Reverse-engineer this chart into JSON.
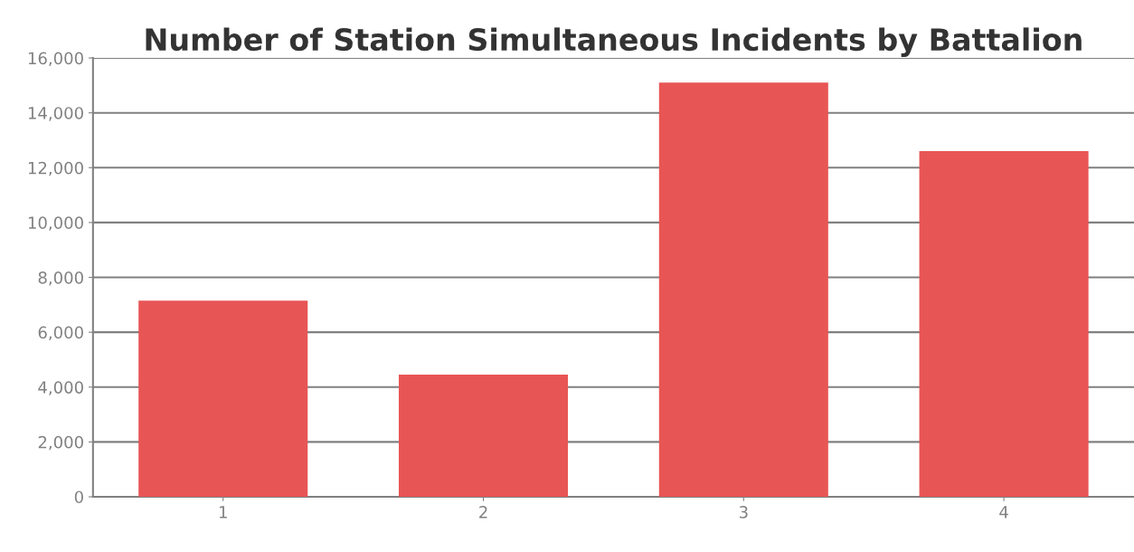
{
  "chart_data": {
    "type": "bar",
    "title": "Number of Station Simultaneous Incidents by Battalion",
    "categories": [
      "1",
      "2",
      "3",
      "4"
    ],
    "values": [
      7150,
      4450,
      15100,
      12600
    ],
    "color": "#e85555",
    "ylim": [
      0,
      16000
    ],
    "yticks": [
      {
        "value": 0,
        "label": "0"
      },
      {
        "value": 2000,
        "label": "2,000"
      },
      {
        "value": 4000,
        "label": "4,000"
      },
      {
        "value": 6000,
        "label": "6,000"
      },
      {
        "value": 8000,
        "label": "8,000"
      },
      {
        "value": 10000,
        "label": "10,000"
      },
      {
        "value": 12000,
        "label": "12,000"
      },
      {
        "value": 14000,
        "label": "14,000"
      },
      {
        "value": 16000,
        "label": "16,000"
      }
    ],
    "grid": "y"
  }
}
